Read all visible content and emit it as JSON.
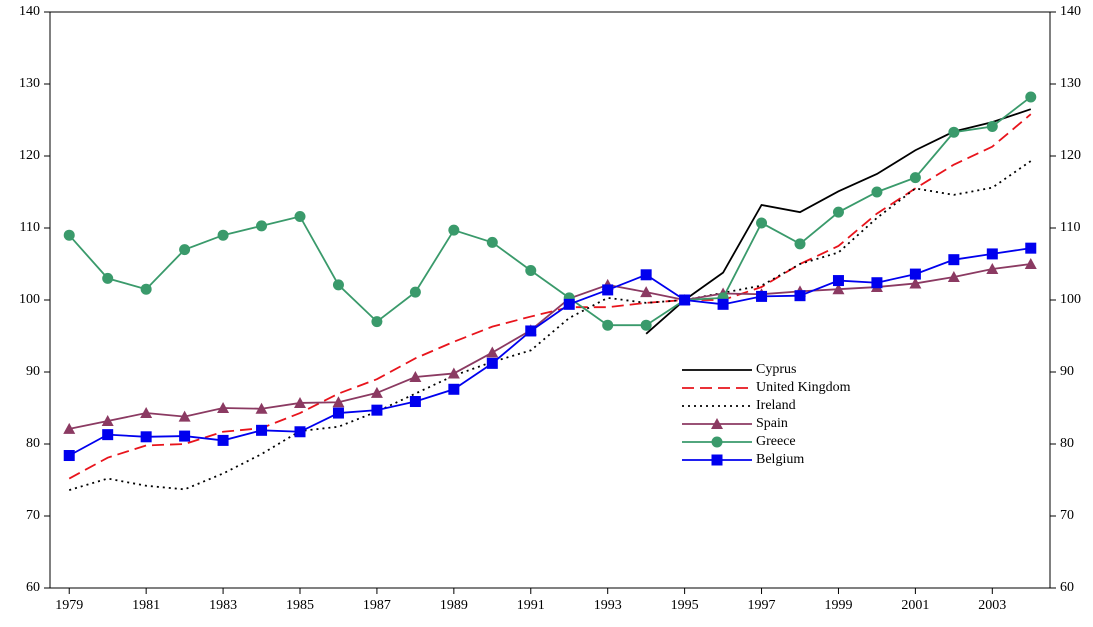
{
  "chart_data": {
    "type": "line",
    "x": [
      1979,
      1980,
      1981,
      1982,
      1983,
      1984,
      1985,
      1986,
      1987,
      1988,
      1989,
      1990,
      1991,
      1992,
      1993,
      1994,
      1995,
      1996,
      1997,
      1998,
      1999,
      2000,
      2001,
      2002,
      2003,
      2004
    ],
    "xlim": [
      1978.5,
      2004.5
    ],
    "xticks": [
      1979,
      1981,
      1983,
      1985,
      1987,
      1989,
      1991,
      1993,
      1995,
      1997,
      1999,
      2001,
      2003
    ],
    "ylim": [
      60,
      140
    ],
    "yticks": [
      60,
      70,
      80,
      90,
      100,
      110,
      120,
      130,
      140
    ],
    "y2lim": [
      60,
      140
    ],
    "y2ticks": [
      60,
      70,
      80,
      90,
      100,
      110,
      120,
      130,
      140
    ],
    "series": [
      {
        "name": "Cyprus",
        "color": "#000000",
        "dash": "solid",
        "marker": "none",
        "values": [
          null,
          null,
          null,
          null,
          null,
          null,
          null,
          null,
          null,
          null,
          null,
          null,
          null,
          null,
          null,
          95.3,
          100,
          103.8,
          113.2,
          112.2,
          115.1,
          117.5,
          120.8,
          123.4,
          124.7,
          126.5
        ]
      },
      {
        "name": "United Kingdom",
        "color": "#e8141c",
        "dash": "dashed",
        "marker": "none",
        "values": [
          75.2,
          78.1,
          79.8,
          80,
          81.7,
          82.2,
          84.3,
          87,
          89,
          91.9,
          94.2,
          96.3,
          97.7,
          99,
          99,
          99.6,
          100,
          100,
          101.8,
          105,
          107.5,
          112,
          115.5,
          118.8,
          121.3,
          125.8
        ]
      },
      {
        "name": "Ireland",
        "color": "#000000",
        "dash": "dotted",
        "marker": "none",
        "values": [
          73.6,
          75.2,
          74.2,
          73.7,
          75.9,
          78.6,
          81.8,
          82.4,
          84.5,
          87,
          89.5,
          91.4,
          93,
          97.5,
          100.3,
          99.6,
          100,
          101,
          102,
          105,
          106.6,
          111.4,
          115.5,
          114.6,
          115.6,
          119.3
        ]
      },
      {
        "name": "Spain",
        "color": "#8b3a62",
        "dash": "solid",
        "marker": "triangle",
        "values": [
          82.1,
          83.2,
          84.3,
          83.8,
          85,
          84.9,
          85.7,
          85.8,
          87.1,
          89.3,
          89.8,
          92.7,
          95.8,
          100.2,
          102.1,
          101.1,
          100,
          100.9,
          100.8,
          101.2,
          101.5,
          101.8,
          102.3,
          103.2,
          104.3,
          105
        ]
      },
      {
        "name": "Greece",
        "color": "#3a9a6b",
        "dash": "solid",
        "marker": "circle",
        "values": [
          109,
          103,
          101.5,
          107,
          109,
          110.3,
          111.6,
          102.1,
          97,
          101.1,
          109.7,
          108,
          104.1,
          100.3,
          96.5,
          96.5,
          100,
          100.3,
          110.7,
          107.8,
          112.2,
          115,
          117,
          123.3,
          124.1,
          128.2
        ]
      },
      {
        "name": "Belgium",
        "color": "#0000ee",
        "dash": "solid",
        "marker": "square",
        "values": [
          78.4,
          81.3,
          81,
          81.1,
          80.5,
          81.9,
          81.7,
          84.3,
          84.7,
          85.9,
          87.6,
          91.2,
          95.7,
          99.4,
          101.4,
          103.5,
          100,
          99.4,
          100.5,
          100.6,
          102.7,
          102.4,
          103.6,
          105.6,
          106.4,
          107.2
        ]
      }
    ]
  }
}
